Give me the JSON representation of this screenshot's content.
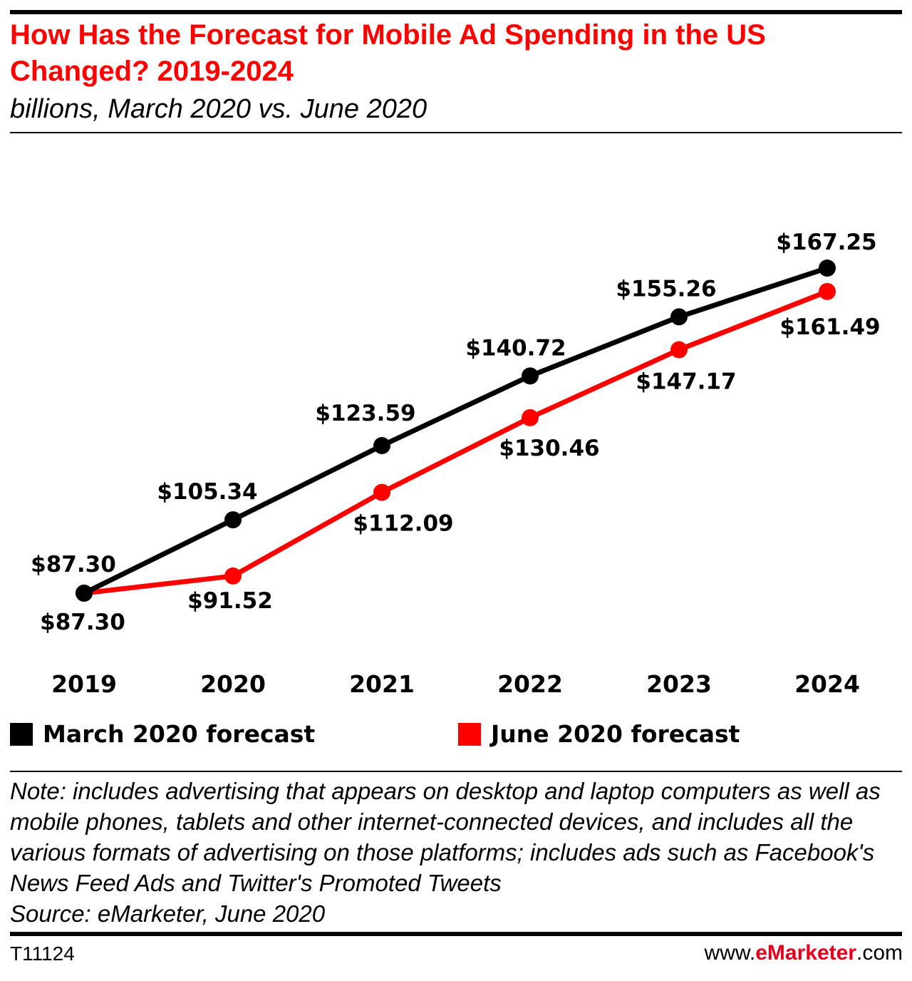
{
  "header": {
    "title": "How Has the Forecast for Mobile Ad Spending in the US Changed? 2019-2024",
    "subtitle": "billions, March 2020 vs. June 2020"
  },
  "chart_data": {
    "type": "line",
    "title": "How Has the Forecast for Mobile Ad Spending in the US Changed? 2019-2024",
    "subtitle": "billions, March 2020 vs. June 2020",
    "categories": [
      "2019",
      "2020",
      "2021",
      "2022",
      "2023",
      "2024"
    ],
    "series": [
      {
        "name": "March 2020 forecast",
        "color": "#000000",
        "values": [
          87.3,
          105.34,
          123.59,
          140.72,
          155.26,
          167.25
        ],
        "labels": [
          "$87.30",
          "$105.34",
          "$123.59",
          "$140.72",
          "$155.26",
          "$167.25"
        ]
      },
      {
        "name": "June 2020 forecast",
        "color": "#ff0000",
        "values": [
          87.3,
          91.52,
          112.09,
          130.46,
          147.17,
          161.49
        ],
        "labels": [
          "$87.30",
          "$91.52",
          "$112.09",
          "$130.46",
          "$147.17",
          "$161.49"
        ]
      }
    ],
    "grid": false,
    "legend": "bottom"
  },
  "footer": {
    "note": "Note: includes advertising that appears on desktop and laptop computers as well as mobile phones, tablets and other internet-connected devices, and includes all the various formats of advertising on those platforms; includes ads such as Facebook's News Feed Ads and Twitter's Promoted Tweets",
    "source": "Source: eMarketer, June 2020",
    "chart_id": "T11124",
    "brand_prefix": "www.",
    "brand_name": "eMarketer",
    "brand_suffix": ".com"
  }
}
